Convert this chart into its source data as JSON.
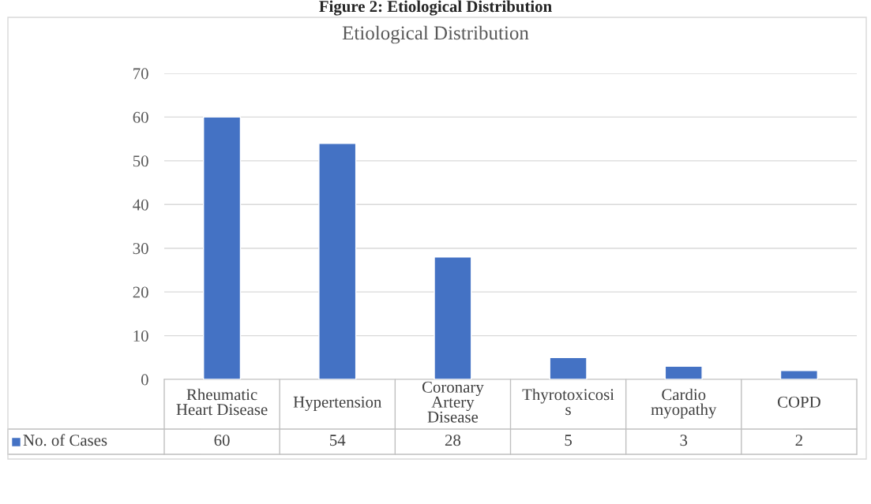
{
  "chart_data": {
    "type": "bar",
    "title": "Figure 2: Etiological Distribution",
    "subtitle": "Etiological Distribution",
    "categories": [
      "Rheumatic\nHeart Disease",
      "Hypertension",
      "Coronary\nArtery\nDisease",
      "Thyrotoxicosi\ns",
      "Cardio\nmyopathy",
      "COPD"
    ],
    "series": [
      {
        "name": "No. of Cases",
        "color": "#4472c4",
        "values": [
          60,
          54,
          28,
          5,
          3,
          2
        ]
      }
    ],
    "ylim": [
      0,
      70
    ],
    "yticks": [
      0,
      10,
      20,
      30,
      40,
      50,
      60,
      70
    ],
    "grid": "y",
    "legend": "bottom",
    "data_labels": true
  }
}
